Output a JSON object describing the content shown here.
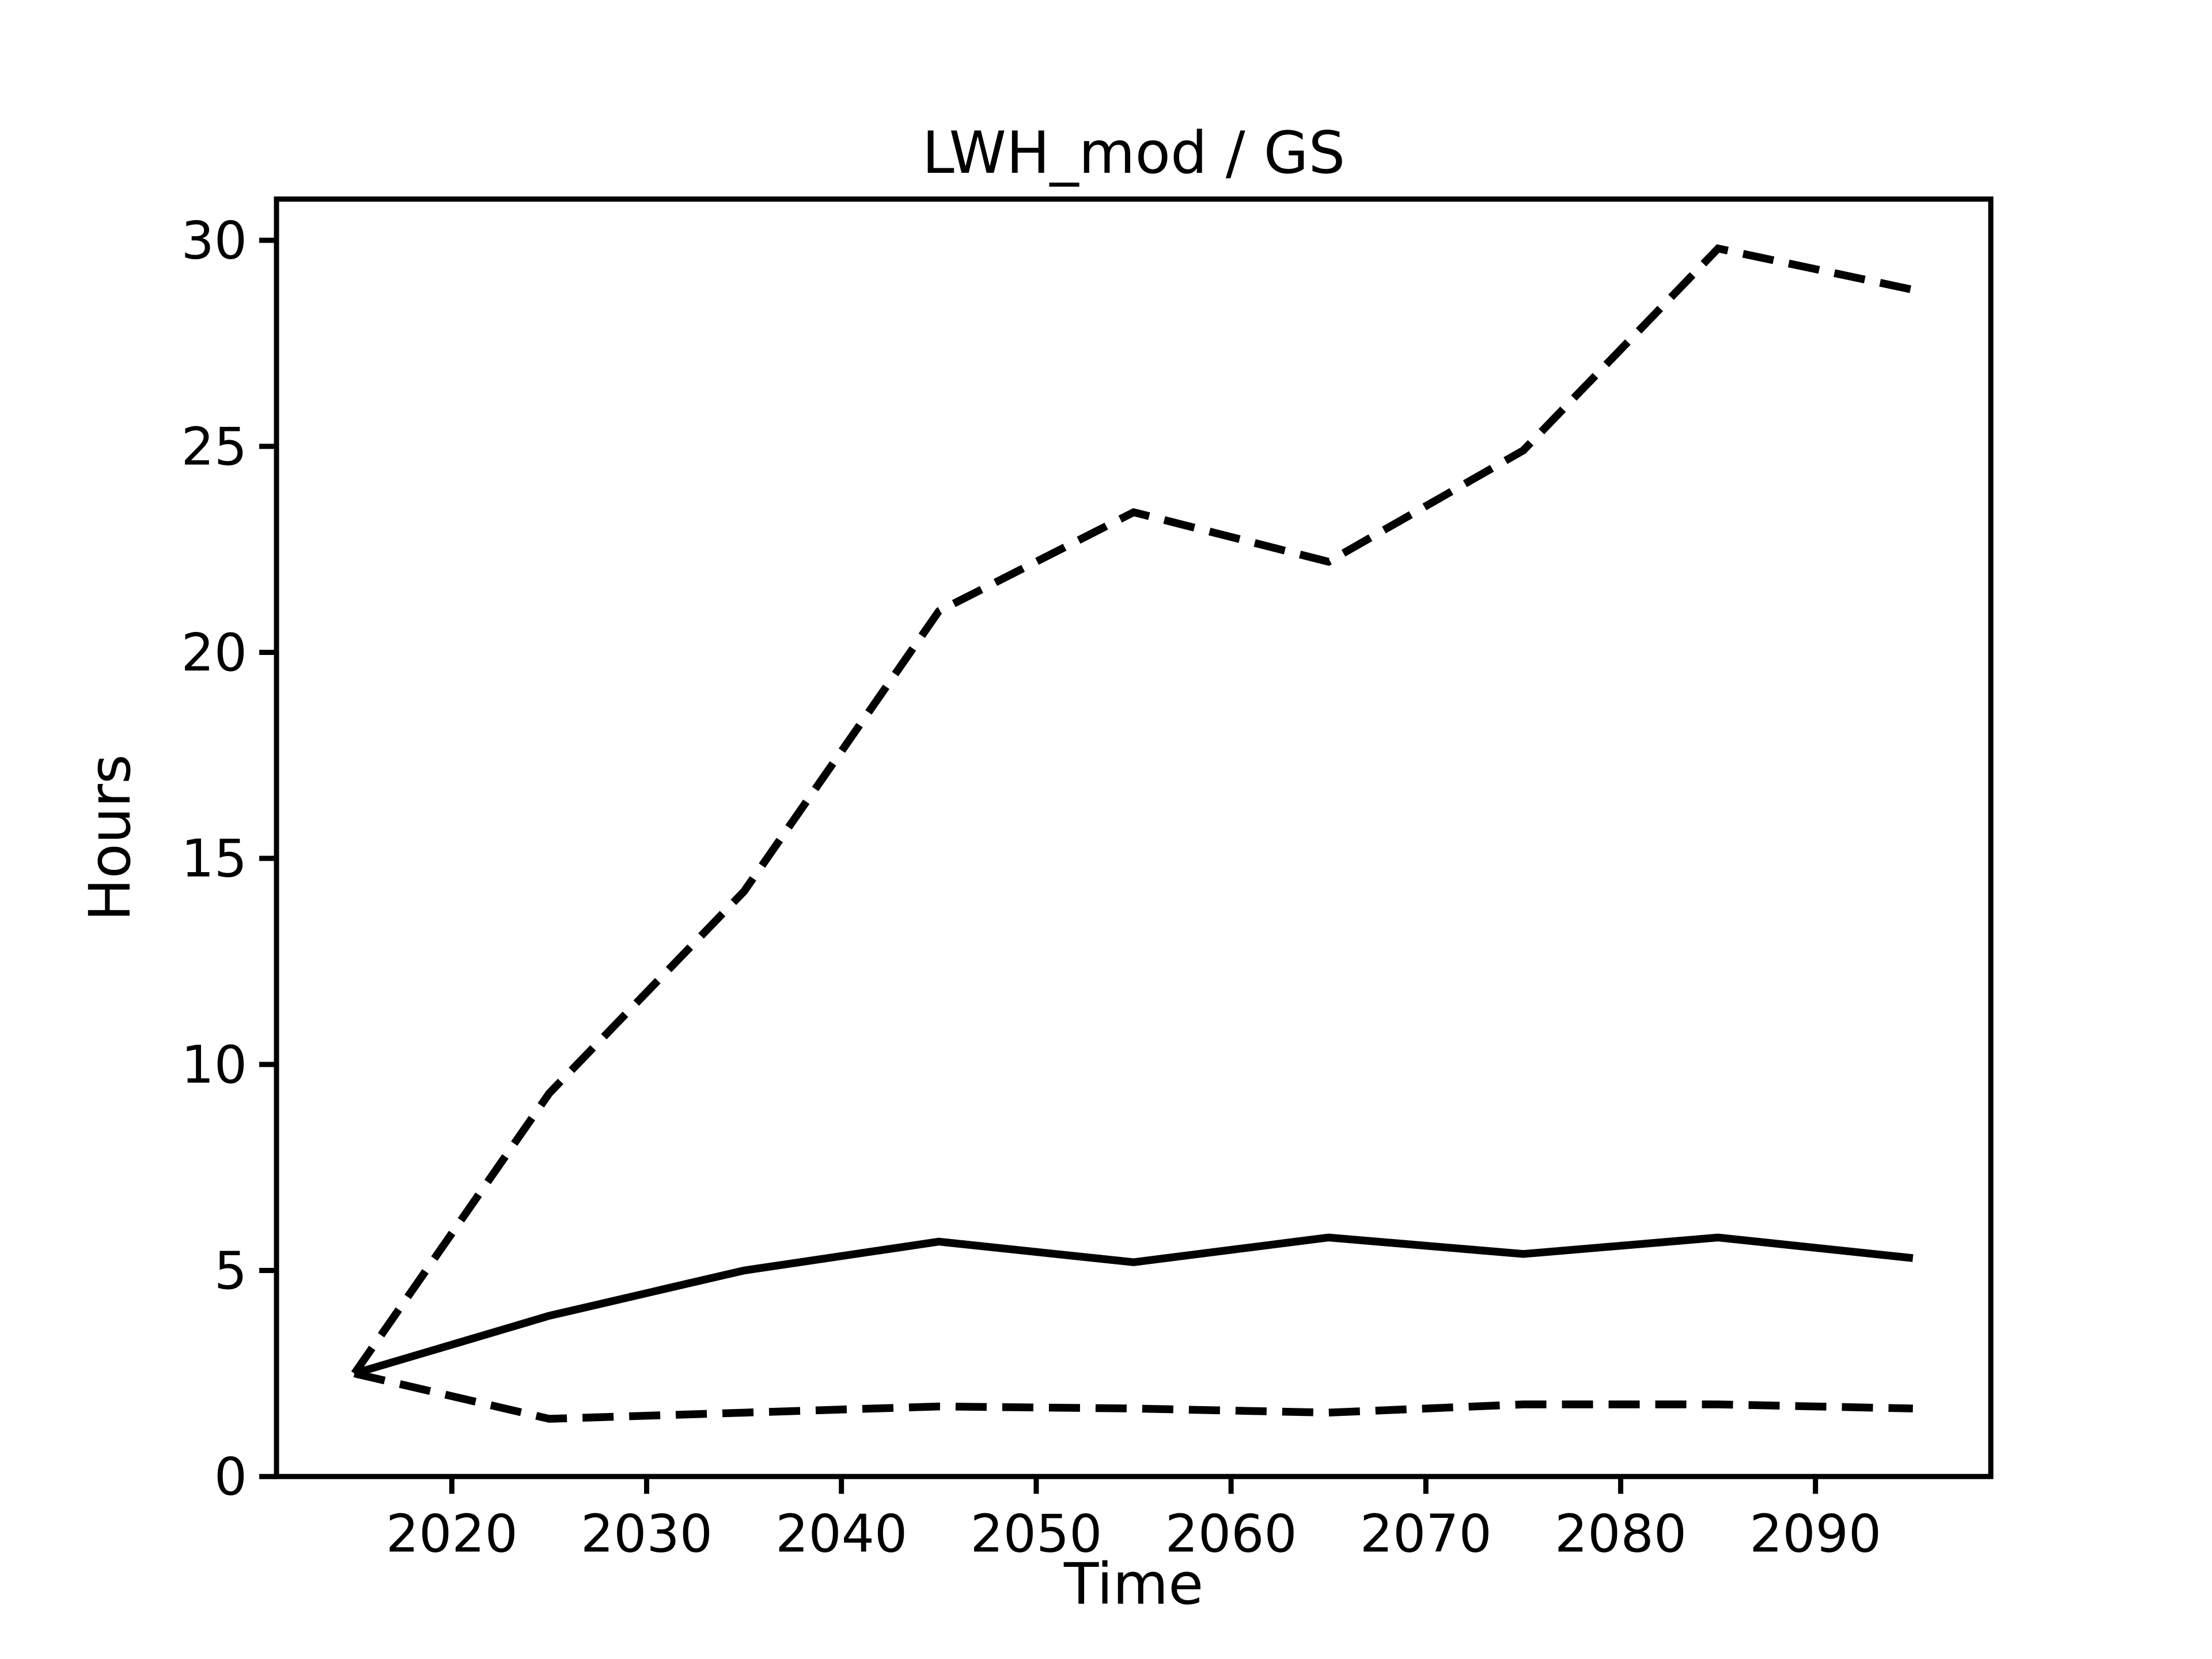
{
  "chart_data": {
    "type": "line",
    "title": "LWH_mod / GS",
    "xlabel": "Time",
    "ylabel": "Hours",
    "x": [
      2015,
      2025,
      2035,
      2045,
      2055,
      2065,
      2075,
      2085,
      2095
    ],
    "series": [
      {
        "name": "upper-dashed",
        "style": "dashed",
        "values": [
          2.5,
          9.3,
          14.2,
          21.0,
          23.4,
          22.2,
          24.9,
          29.8,
          28.8
        ]
      },
      {
        "name": "middle-solid",
        "style": "solid",
        "values": [
          2.5,
          3.9,
          5.0,
          5.7,
          5.2,
          5.8,
          5.4,
          5.8,
          5.3
        ]
      },
      {
        "name": "lower-dashed",
        "style": "dashed",
        "values": [
          2.5,
          1.4,
          1.55,
          1.7,
          1.65,
          1.55,
          1.75,
          1.75,
          1.65
        ]
      }
    ],
    "xlim": [
      2011,
      2099
    ],
    "ylim": [
      0,
      31
    ],
    "xticks": [
      2020,
      2030,
      2040,
      2050,
      2060,
      2070,
      2080,
      2090
    ],
    "yticks": [
      0,
      5,
      10,
      15,
      20,
      25,
      30
    ],
    "grid": false,
    "legend": null,
    "line_color": "#000000",
    "background": "#ffffff"
  }
}
